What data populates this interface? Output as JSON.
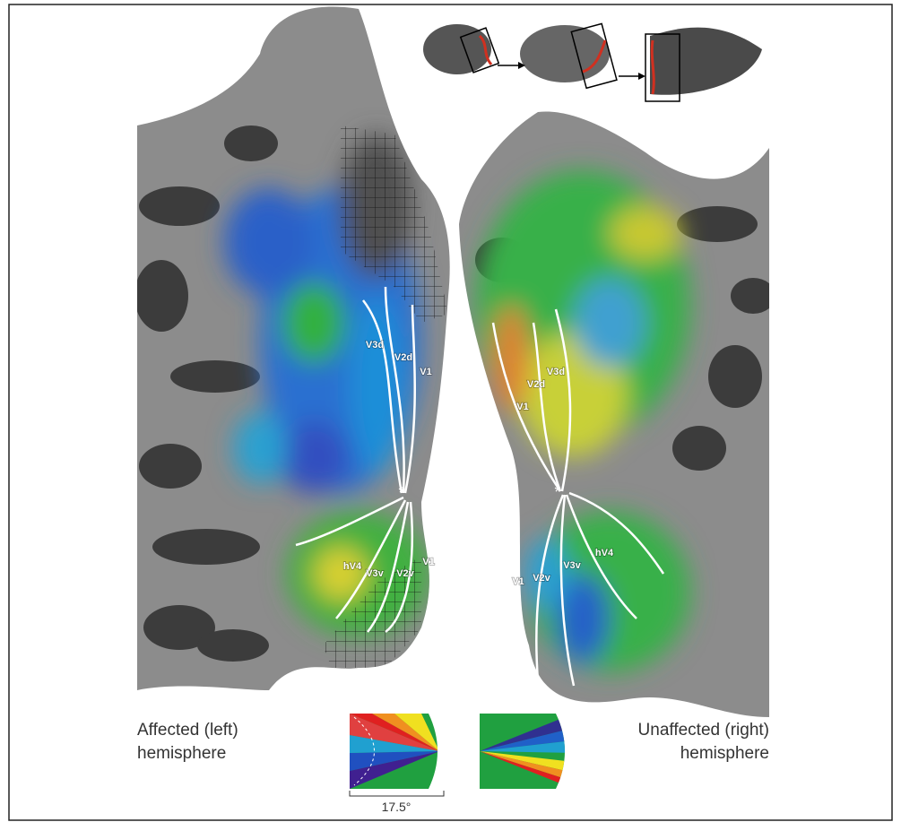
{
  "figure": {
    "left_hemisphere": {
      "caption": [
        "Affected (left)",
        "hemisphere"
      ],
      "fovea": "*",
      "labels": [
        "V3d",
        "V2d",
        "V1",
        "hV4",
        "V3v",
        "V2v",
        "V1"
      ]
    },
    "right_hemisphere": {
      "caption": [
        "Unaffected (right)",
        "hemisphere"
      ],
      "fovea": "*",
      "labels": [
        "V1",
        "V2d",
        "V3d",
        "V1",
        "V2v",
        "V3v",
        "hV4"
      ]
    },
    "scale_bar": "17.5°"
  }
}
